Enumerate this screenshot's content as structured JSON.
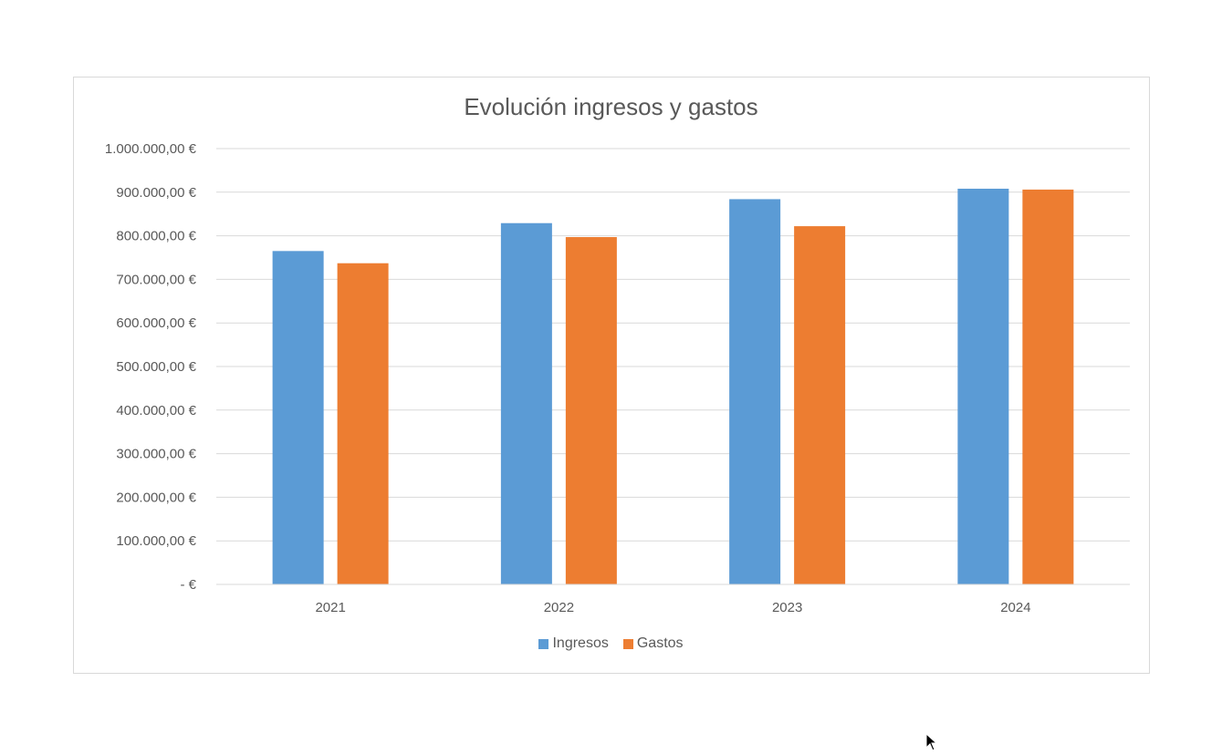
{
  "chart_data": {
    "type": "bar",
    "title": "Evolución ingresos y gastos",
    "categories": [
      "2021",
      "2022",
      "2023",
      "2024"
    ],
    "series": [
      {
        "name": "Ingresos",
        "color": "#5b9bd5",
        "values": [
          765000,
          829000,
          884000,
          908000
        ]
      },
      {
        "name": "Gastos",
        "color": "#ed7d31",
        "values": [
          737000,
          797000,
          822000,
          906000
        ]
      }
    ],
    "ylim": [
      0,
      1000000
    ],
    "ytick_values": [
      0,
      100000,
      200000,
      300000,
      400000,
      500000,
      600000,
      700000,
      800000,
      900000,
      1000000
    ],
    "ytick_labels": [
      "-  €",
      "100.000,00 €",
      "200.000,00 €",
      "300.000,00 €",
      "400.000,00 €",
      "500.000,00 €",
      "600.000,00 €",
      "700.000,00 €",
      "800.000,00 €",
      "900.000,00 €",
      "1.000.000,00 €"
    ],
    "xlabel": "",
    "ylabel": "",
    "grid": true,
    "legend_position": "bottom"
  },
  "cursor_icon": "arrow-cursor-icon"
}
